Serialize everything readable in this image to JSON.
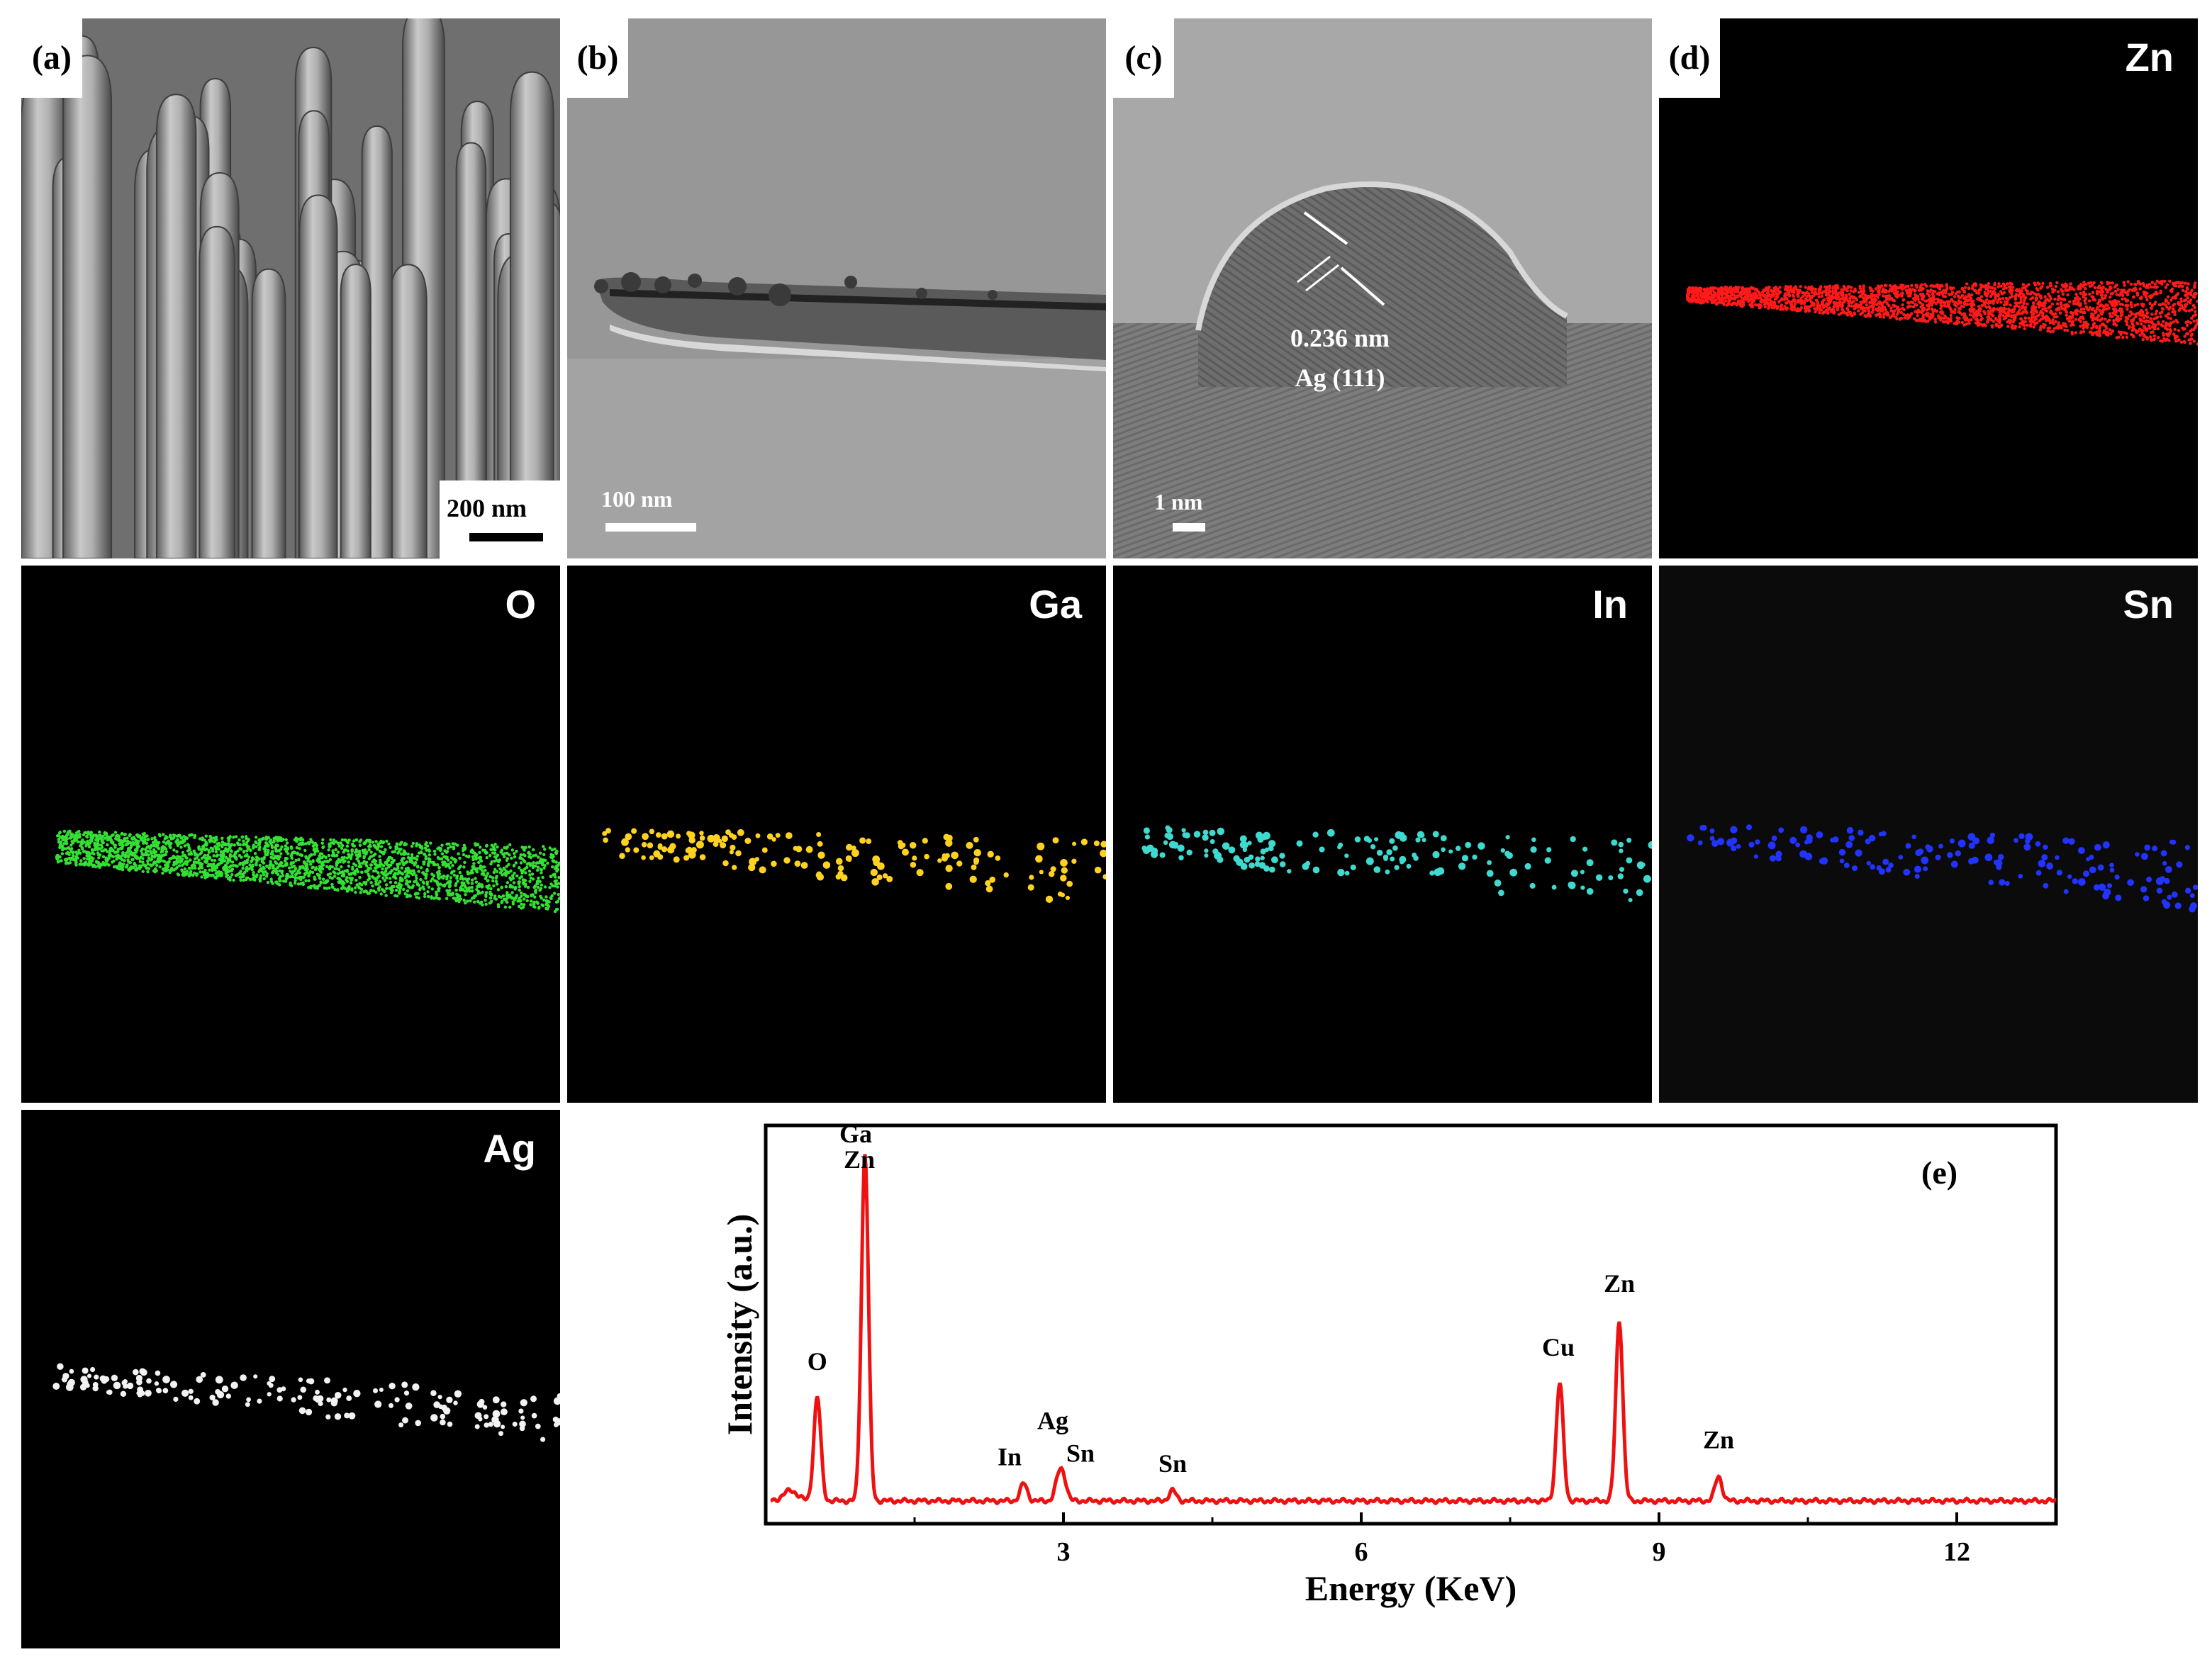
{
  "panels": {
    "a": {
      "label": "(a)",
      "scale": "200 nm"
    },
    "b": {
      "label": "(b)",
      "scale": "100 nm"
    },
    "c": {
      "label": "(c)",
      "scale": "1 nm",
      "lattice_spacing": "0.236 nm",
      "plane": "Ag (111)"
    },
    "d": {
      "label": "(d)"
    }
  },
  "maps": {
    "zn": {
      "element": "Zn",
      "color": "#ff1a1a"
    },
    "o": {
      "element": "O",
      "color": "#35e035"
    },
    "ga": {
      "element": "Ga",
      "color": "#ffd21f"
    },
    "in": {
      "element": "In",
      "color": "#3fd9cf"
    },
    "sn": {
      "element": "Sn",
      "color": "#2233ff"
    },
    "ag": {
      "element": "Ag",
      "color": "#f2f2f2"
    }
  },
  "chart_data": {
    "type": "line",
    "panel_label": "(e)",
    "xlabel": "Energy (KeV)",
    "ylabel": "Intensity (a.u.)",
    "xlim": [
      0,
      13
    ],
    "ylim": [
      0,
      100
    ],
    "xticks": [
      3,
      6,
      9,
      12
    ],
    "line_color": "#ee1111",
    "peaks": [
      {
        "energy": 0.52,
        "intensity": 30,
        "label": "O"
      },
      {
        "energy": 1.0,
        "intensity": 100,
        "label": "Ga Zn"
      },
      {
        "energy": 2.6,
        "intensity": 5,
        "label": "In"
      },
      {
        "energy": 3.0,
        "intensity": 6,
        "label": "Sn"
      },
      {
        "energy": 2.95,
        "intensity": 6,
        "label": "Ag"
      },
      {
        "energy": 4.1,
        "intensity": 3,
        "label": "Sn"
      },
      {
        "energy": 8.0,
        "intensity": 34,
        "label": "Cu"
      },
      {
        "energy": 8.6,
        "intensity": 52,
        "label": "Zn"
      },
      {
        "energy": 9.6,
        "intensity": 7,
        "label": "Zn"
      }
    ]
  }
}
